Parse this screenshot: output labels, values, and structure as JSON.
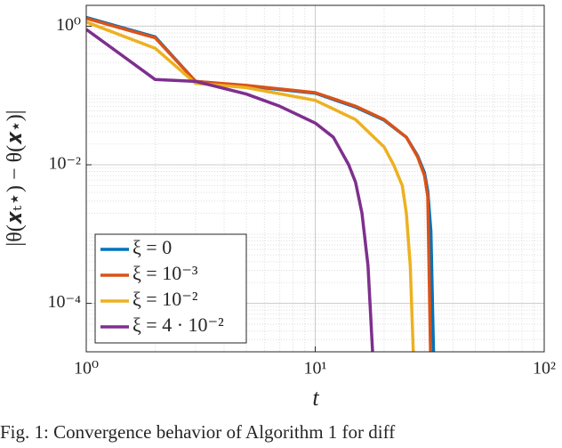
{
  "chart_data": {
    "type": "line",
    "x_label": "t",
    "y_label": "|θ(𝒙ₜ⋆) − θ(𝒙⋆)|",
    "caption": "Fig. 1: Convergence behavior of Algorithm 1 for diff",
    "log_x": true,
    "log_y": true,
    "grid": true,
    "legend": "lower left",
    "xlim": [
      1,
      100
    ],
    "ylim": [
      2e-05,
      2
    ],
    "xticks": [
      {
        "value": 1,
        "label": "10⁰"
      },
      {
        "value": 10,
        "label": "10¹"
      },
      {
        "value": 100,
        "label": "10²"
      }
    ],
    "yticks": [
      {
        "value": 0.0001,
        "label": "10⁻⁴"
      },
      {
        "value": 0.01,
        "label": "10⁻²"
      },
      {
        "value": 1,
        "label": "10⁰"
      }
    ],
    "series": [
      {
        "name": "ξ = 0",
        "color": "#0072BD",
        "x": [
          1,
          2,
          3,
          5,
          10,
          15,
          20,
          25,
          28,
          30,
          31,
          32,
          33
        ],
        "values": [
          1.34,
          0.7,
          0.16,
          0.137,
          0.108,
          0.068,
          0.044,
          0.025,
          0.0135,
          0.0077,
          0.0042,
          0.0011,
          1e-05
        ]
      },
      {
        "name": "ξ = 10⁻³",
        "color": "#D95319",
        "x": [
          1,
          2,
          3,
          5,
          10,
          15,
          20,
          25,
          28,
          30,
          31,
          32
        ],
        "values": [
          1.3,
          0.68,
          0.16,
          0.14,
          0.11,
          0.07,
          0.045,
          0.025,
          0.013,
          0.007,
          0.0035,
          1e-05
        ]
      },
      {
        "name": "ξ = 10⁻²",
        "color": "#EDB120",
        "x": [
          1,
          2,
          3,
          5,
          10,
          15,
          20,
          22,
          24,
          25,
          26,
          27
        ],
        "values": [
          1.15,
          0.48,
          0.15,
          0.13,
          0.085,
          0.045,
          0.018,
          0.01,
          0.005,
          0.002,
          0.00035,
          1e-05
        ]
      },
      {
        "name": "ξ = 4 · 10⁻²",
        "color": "#7E2F8E",
        "x": [
          1,
          2,
          3,
          5,
          7,
          10,
          12,
          14,
          15,
          16,
          17,
          18
        ],
        "values": [
          0.9,
          0.17,
          0.16,
          0.105,
          0.07,
          0.04,
          0.025,
          0.01,
          0.0056,
          0.002,
          0.00035,
          1e-05
        ]
      }
    ]
  }
}
